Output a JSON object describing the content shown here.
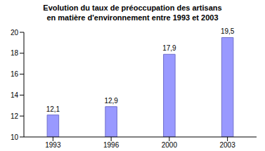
{
  "chart_data": {
    "type": "bar",
    "title": "Evolution du taux de préoccupation des artisans\nen matière d'environnement entre 1993 et 2003",
    "categories": [
      "1993",
      "1996",
      "2000",
      "2003"
    ],
    "values": [
      12.1,
      12.9,
      17.9,
      19.5
    ],
    "value_labels": [
      "12,1",
      "12,9",
      "17,9",
      "19,5"
    ],
    "color": "#9999ff",
    "ylim": [
      10,
      20
    ],
    "yticks": [
      10,
      12,
      14,
      16,
      18,
      20
    ],
    "grid": false,
    "data_labels": true
  }
}
